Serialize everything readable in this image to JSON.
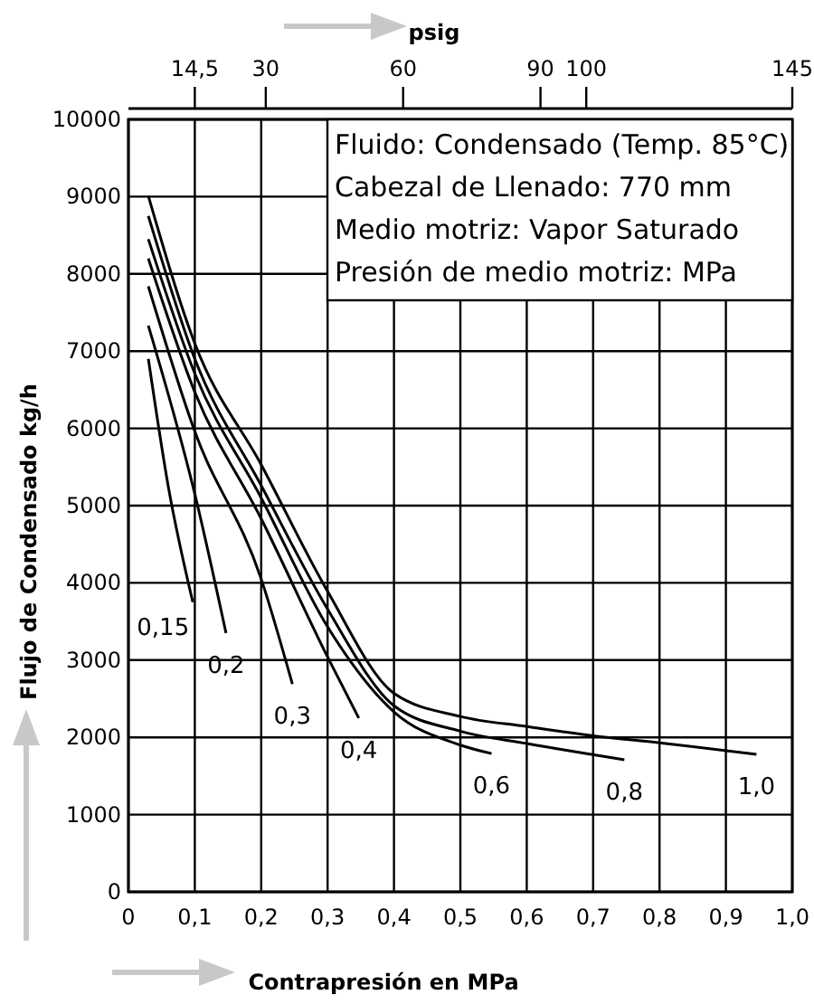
{
  "chart_data": {
    "type": "line",
    "xlabel": "Contrapresión en MPa",
    "ylabel": "Flujo de Condensado kg/h",
    "x2label": "psig",
    "xlim": [
      0,
      1
    ],
    "xticks": [
      {
        "value": 0,
        "label": "0"
      },
      {
        "value": 0.1,
        "label": "0,1"
      },
      {
        "value": 0.2,
        "label": "0,2"
      },
      {
        "value": 0.3,
        "label": "0,3"
      },
      {
        "value": 0.4,
        "label": "0,4"
      },
      {
        "value": 0.5,
        "label": "0,5"
      },
      {
        "value": 0.6,
        "label": "0,6"
      },
      {
        "value": 0.7,
        "label": "0,7"
      },
      {
        "value": 0.8,
        "label": "0,8"
      },
      {
        "value": 0.9,
        "label": "0,9"
      },
      {
        "value": 1,
        "label": "1,0"
      }
    ],
    "ylim": [
      0,
      10000
    ],
    "yticks": [
      0,
      1000,
      2000,
      3000,
      4000,
      5000,
      6000,
      7000,
      8000,
      9000,
      10000
    ],
    "x2lim": [
      0,
      145
    ],
    "x2ticks": [
      {
        "value": 14.5,
        "label": "14,5"
      },
      30,
      60,
      90,
      100,
      145
    ],
    "grid": true,
    "marker": "none",
    "line_style": "solid",
    "annotations": [
      "Fluido: Condensado (Temp. 85°C)",
      "Cabezal de Llenado: 770 mm",
      "Medio motriz: Vapor Saturado",
      "Presión de medio motriz: MPa"
    ],
    "series": [
      {
        "name": "0,15",
        "color": "#000000",
        "x": [
          0.03,
          0.06,
          0.097
        ],
        "values": [
          6900,
          5250,
          3750
        ]
      },
      {
        "name": "0,2",
        "color": "#000000",
        "x": [
          0.03,
          0.1,
          0.147
        ],
        "values": [
          7330,
          5150,
          3350
        ]
      },
      {
        "name": "0,3",
        "color": "#000000",
        "x": [
          0.03,
          0.1,
          0.2,
          0.247
        ],
        "values": [
          7840,
          5960,
          4050,
          2690
        ]
      },
      {
        "name": "0,4",
        "color": "#000000",
        "x": [
          0.03,
          0.1,
          0.2,
          0.3,
          0.347
        ],
        "values": [
          8200,
          6470,
          4830,
          3040,
          2250
        ]
      },
      {
        "name": "0,6",
        "color": "#000000",
        "x": [
          0.03,
          0.1,
          0.2,
          0.3,
          0.4,
          0.5,
          0.547
        ],
        "values": [
          8450,
          6710,
          5100,
          3430,
          2330,
          1900,
          1790
        ]
      },
      {
        "name": "0,8",
        "color": "#000000",
        "x": [
          0.03,
          0.1,
          0.2,
          0.3,
          0.4,
          0.5,
          0.6,
          0.747
        ],
        "values": [
          8750,
          6900,
          5260,
          3660,
          2410,
          2080,
          1920,
          1710
        ]
      },
      {
        "name": "1,0",
        "color": "#000000",
        "x": [
          0.03,
          0.1,
          0.2,
          0.3,
          0.4,
          0.5,
          0.6,
          0.7,
          0.8,
          0.946
        ],
        "values": [
          9010,
          7100,
          5530,
          3890,
          2570,
          2270,
          2140,
          2020,
          1930,
          1780
        ]
      }
    ]
  }
}
